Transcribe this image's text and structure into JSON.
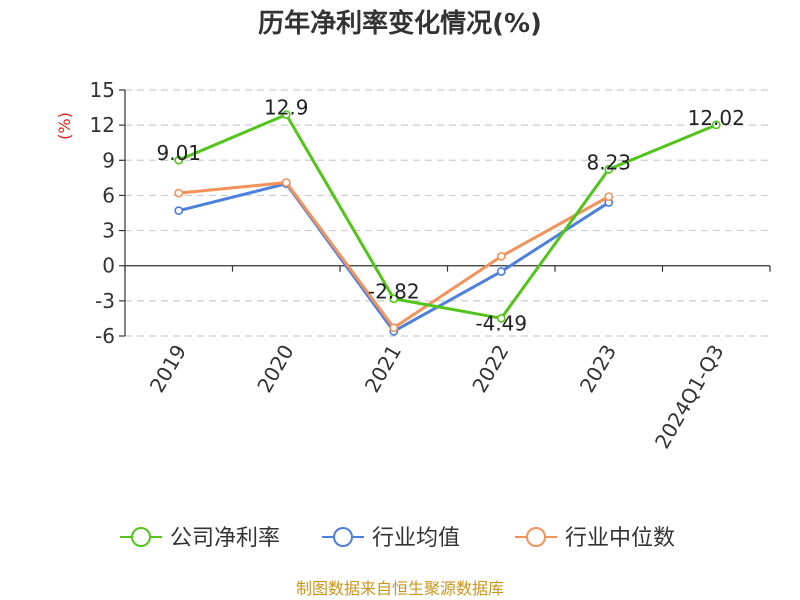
{
  "chart_data": {
    "type": "line",
    "title": "历年净利率变化情况(%)",
    "ylabel": "(%)",
    "categories": [
      "2019",
      "2020",
      "2021",
      "2022",
      "2023",
      "2024Q1-Q3"
    ],
    "ylim": [
      -6,
      15
    ],
    "yticks": [
      -6,
      -3,
      0,
      3,
      6,
      9,
      12,
      15
    ],
    "ytick_labels": [
      "-6",
      "-3",
      "0",
      "3",
      "6",
      "9",
      "12",
      "15"
    ],
    "grid": true,
    "legend_position": "bottom",
    "series": [
      {
        "name": "公司净利率",
        "color": "#52c41a",
        "values": [
          9.01,
          12.9,
          -2.82,
          -4.49,
          8.23,
          12.02
        ],
        "labels": [
          "9.01",
          "12.9",
          "-2.82",
          "-4.49",
          "8.23",
          "12.02"
        ]
      },
      {
        "name": "行业均值",
        "color": "#4e7fdc",
        "values": [
          4.7,
          7.0,
          -5.6,
          -0.5,
          5.4,
          null
        ]
      },
      {
        "name": "行业中位数",
        "color": "#f5915a",
        "values": [
          6.2,
          7.1,
          -5.3,
          0.8,
          5.9,
          null
        ]
      }
    ]
  },
  "source_text": "制图数据来自恒生聚源数据库",
  "colors": {
    "axis": "#333333",
    "grid": "#cccccc",
    "unit_label": "#e0201b",
    "source": "#c8961e"
  }
}
